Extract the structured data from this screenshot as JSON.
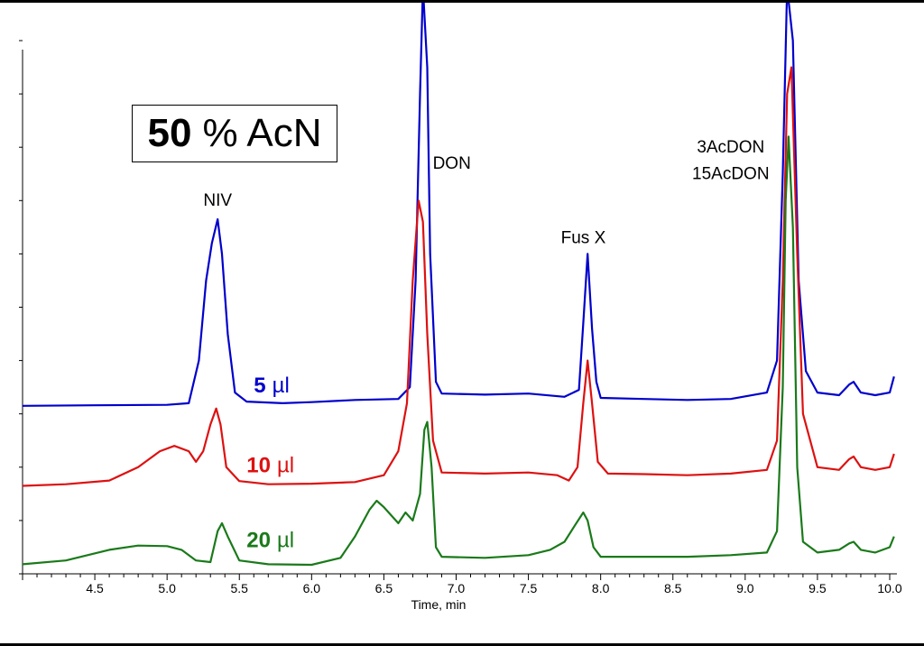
{
  "chart_data": {
    "type": "line",
    "title_bold": "50",
    "title_rest": "% AcN",
    "xlabel": "Time, min",
    "ylabel": "",
    "xlim": [
      4.0,
      10.05
    ],
    "ylim": [
      0,
      100
    ],
    "x_ticks": [
      "4.5",
      "5.0",
      "5.5",
      "6.0",
      "6.5",
      "7.0",
      "7.5",
      "8.0",
      "8.5",
      "9.0",
      "9.5",
      "10.0"
    ],
    "grid": false,
    "peak_labels": [
      {
        "text": "NIV",
        "x": 5.35,
        "y": 69
      },
      {
        "text": "DON",
        "x": 6.97,
        "y": 76
      },
      {
        "text": "Fus X",
        "x": 7.88,
        "y": 62
      },
      {
        "text": "3AcDON",
        "x": 8.9,
        "y": 79
      },
      {
        "text": "15AcDON",
        "x": 8.9,
        "y": 74
      }
    ],
    "series": [
      {
        "name": "5 µl",
        "label_bold": "5",
        "label_unit": "µl",
        "color": "#0000cc",
        "label_x": 5.6,
        "label_y": 34,
        "points": [
          [
            4.0,
            31.5
          ],
          [
            4.5,
            31.6
          ],
          [
            5.0,
            31.7
          ],
          [
            5.15,
            32.0
          ],
          [
            5.22,
            40
          ],
          [
            5.27,
            55
          ],
          [
            5.31,
            62
          ],
          [
            5.35,
            66.5
          ],
          [
            5.38,
            60
          ],
          [
            5.42,
            45
          ],
          [
            5.47,
            34
          ],
          [
            5.55,
            32.3
          ],
          [
            5.8,
            32.0
          ],
          [
            6.0,
            32.2
          ],
          [
            6.3,
            32.6
          ],
          [
            6.6,
            32.8
          ],
          [
            6.68,
            35
          ],
          [
            6.72,
            55
          ],
          [
            6.75,
            90
          ],
          [
            6.77,
            110
          ],
          [
            6.8,
            95
          ],
          [
            6.82,
            60
          ],
          [
            6.86,
            36
          ],
          [
            6.9,
            33.8
          ],
          [
            7.2,
            33.6
          ],
          [
            7.5,
            33.8
          ],
          [
            7.75,
            33.2
          ],
          [
            7.85,
            34.5
          ],
          [
            7.88,
            47
          ],
          [
            7.91,
            60
          ],
          [
            7.94,
            46
          ],
          [
            7.97,
            36
          ],
          [
            8.0,
            33
          ],
          [
            8.3,
            32.8
          ],
          [
            8.6,
            32.6
          ],
          [
            8.9,
            32.8
          ],
          [
            9.15,
            34
          ],
          [
            9.22,
            40
          ],
          [
            9.26,
            75
          ],
          [
            9.29,
            110
          ],
          [
            9.33,
            100
          ],
          [
            9.37,
            55
          ],
          [
            9.42,
            38
          ],
          [
            9.5,
            34
          ],
          [
            9.65,
            33.5
          ],
          [
            9.72,
            35.5
          ],
          [
            9.75,
            36
          ],
          [
            9.8,
            34
          ],
          [
            9.9,
            33.5
          ],
          [
            10.0,
            34
          ],
          [
            10.03,
            37
          ]
        ]
      },
      {
        "name": "10 µl",
        "label_bold": "10",
        "label_unit": "µl",
        "color": "#dd1111",
        "label_x": 5.55,
        "label_y": 19,
        "points": [
          [
            4.0,
            16.5
          ],
          [
            4.3,
            16.8
          ],
          [
            4.6,
            17.5
          ],
          [
            4.8,
            20
          ],
          [
            4.95,
            23
          ],
          [
            5.05,
            24
          ],
          [
            5.15,
            23
          ],
          [
            5.2,
            21
          ],
          [
            5.25,
            23
          ],
          [
            5.3,
            28
          ],
          [
            5.34,
            31
          ],
          [
            5.37,
            28
          ],
          [
            5.41,
            20
          ],
          [
            5.5,
            17.4
          ],
          [
            5.7,
            16.8
          ],
          [
            6.0,
            16.9
          ],
          [
            6.3,
            17.2
          ],
          [
            6.5,
            18.5
          ],
          [
            6.6,
            23
          ],
          [
            6.66,
            32
          ],
          [
            6.7,
            55
          ],
          [
            6.74,
            70
          ],
          [
            6.77,
            66
          ],
          [
            6.8,
            45
          ],
          [
            6.84,
            25
          ],
          [
            6.9,
            19
          ],
          [
            7.2,
            18.8
          ],
          [
            7.5,
            19
          ],
          [
            7.7,
            18.5
          ],
          [
            7.78,
            17.5
          ],
          [
            7.84,
            20
          ],
          [
            7.88,
            32
          ],
          [
            7.91,
            40
          ],
          [
            7.94,
            32
          ],
          [
            7.98,
            21
          ],
          [
            8.05,
            18.8
          ],
          [
            8.3,
            18.7
          ],
          [
            8.6,
            18.5
          ],
          [
            8.9,
            18.8
          ],
          [
            9.15,
            19.5
          ],
          [
            9.22,
            25
          ],
          [
            9.26,
            55
          ],
          [
            9.29,
            90
          ],
          [
            9.32,
            95
          ],
          [
            9.36,
            60
          ],
          [
            9.4,
            30
          ],
          [
            9.5,
            20
          ],
          [
            9.65,
            19.5
          ],
          [
            9.72,
            21.5
          ],
          [
            9.75,
            22
          ],
          [
            9.8,
            20
          ],
          [
            9.9,
            19.5
          ],
          [
            10.0,
            20
          ],
          [
            10.03,
            22.5
          ]
        ]
      },
      {
        "name": "20 µl",
        "label_bold": "20",
        "label_unit": "µl",
        "color": "#1a7a1a",
        "label_x": 5.55,
        "label_y": 5,
        "points": [
          [
            4.0,
            1.8
          ],
          [
            4.3,
            2.5
          ],
          [
            4.6,
            4.5
          ],
          [
            4.8,
            5.3
          ],
          [
            5.0,
            5.2
          ],
          [
            5.1,
            4.5
          ],
          [
            5.2,
            2.5
          ],
          [
            5.3,
            2.2
          ],
          [
            5.35,
            8
          ],
          [
            5.38,
            9.5
          ],
          [
            5.42,
            7
          ],
          [
            5.5,
            2.5
          ],
          [
            5.7,
            1.8
          ],
          [
            6.0,
            1.7
          ],
          [
            6.2,
            3
          ],
          [
            6.3,
            7
          ],
          [
            6.4,
            12
          ],
          [
            6.45,
            13.7
          ],
          [
            6.5,
            12.5
          ],
          [
            6.55,
            11
          ],
          [
            6.6,
            9.5
          ],
          [
            6.65,
            11.5
          ],
          [
            6.7,
            10
          ],
          [
            6.75,
            15
          ],
          [
            6.78,
            27
          ],
          [
            6.8,
            28.5
          ],
          [
            6.83,
            20
          ],
          [
            6.86,
            5
          ],
          [
            6.9,
            3.2
          ],
          [
            7.2,
            3
          ],
          [
            7.5,
            3.5
          ],
          [
            7.65,
            4.5
          ],
          [
            7.75,
            6
          ],
          [
            7.82,
            9
          ],
          [
            7.88,
            11.5
          ],
          [
            7.91,
            10
          ],
          [
            7.95,
            5
          ],
          [
            8.0,
            3.2
          ],
          [
            8.3,
            3.2
          ],
          [
            8.6,
            3.2
          ],
          [
            8.9,
            3.5
          ],
          [
            9.15,
            4
          ],
          [
            9.22,
            8
          ],
          [
            9.26,
            35
          ],
          [
            9.28,
            70
          ],
          [
            9.3,
            82
          ],
          [
            9.33,
            65
          ],
          [
            9.36,
            20
          ],
          [
            9.4,
            6
          ],
          [
            9.5,
            4
          ],
          [
            9.65,
            4.5
          ],
          [
            9.72,
            5.7
          ],
          [
            9.75,
            6
          ],
          [
            9.8,
            4.5
          ],
          [
            9.9,
            4
          ],
          [
            10.0,
            5
          ],
          [
            10.03,
            7
          ]
        ]
      }
    ]
  }
}
